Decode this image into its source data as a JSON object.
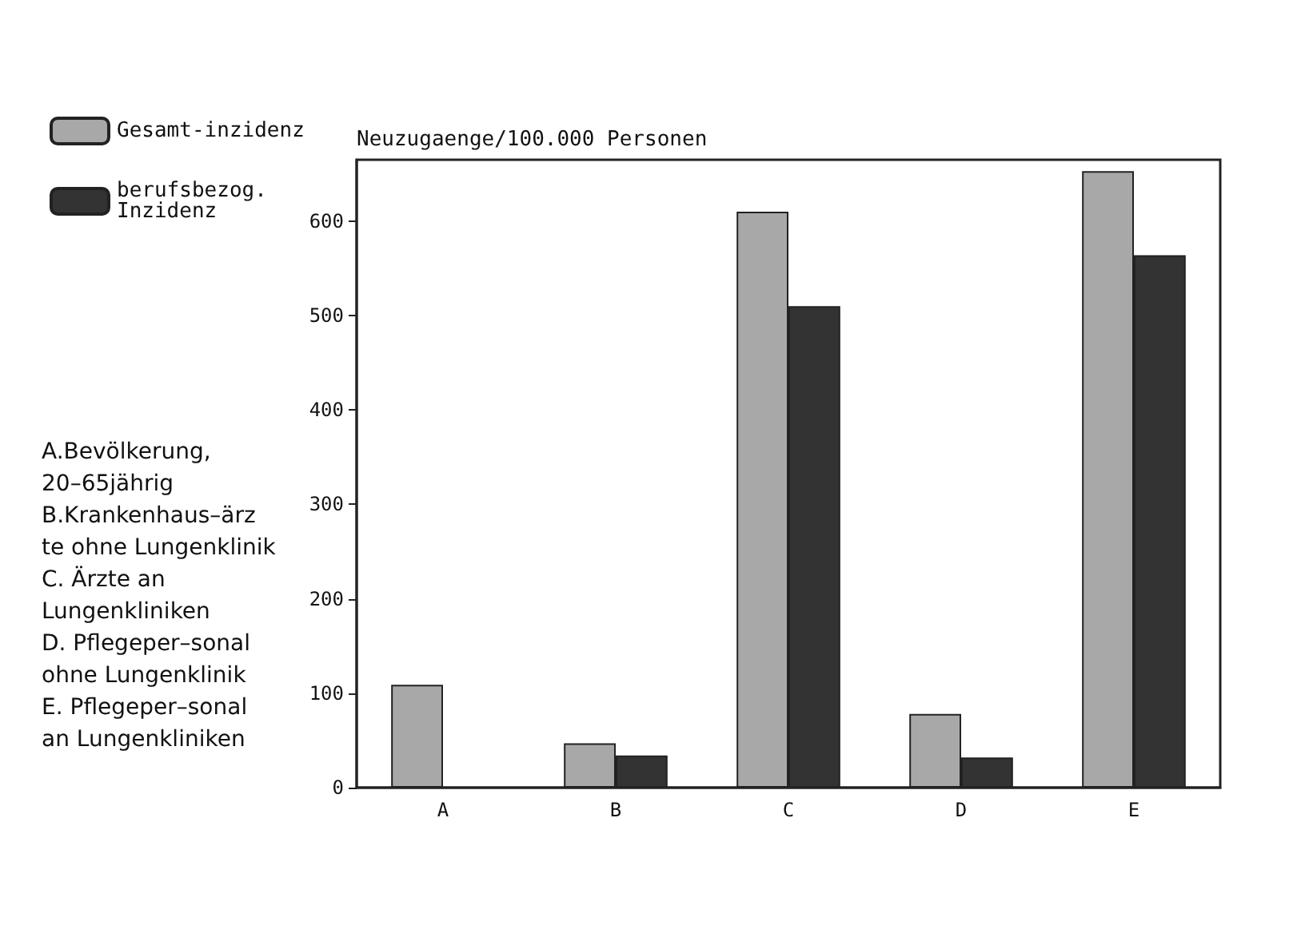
{
  "chart_data": {
    "type": "bar",
    "ylabel": "Neuzugaenge/100.000 Personen",
    "categories": [
      "A",
      "B",
      "C",
      "D",
      "E"
    ],
    "series": [
      {
        "name": "Gesamt-inzidenz",
        "color": "#a8a8a8",
        "values": [
          109,
          47,
          610,
          78,
          653
        ]
      },
      {
        "name": "berufsbezog. Inzidenz",
        "color": "#333333",
        "values": [
          null,
          34,
          510,
          32,
          564
        ]
      }
    ],
    "ylim": [
      0,
      665
    ],
    "yticks": [
      0,
      100,
      200,
      300,
      400,
      500,
      600
    ],
    "grid": false,
    "legend": "left",
    "annotations": [
      "A.Bevölkerung, 20–65jährig",
      "B.Krankenhaus–ärzte ohne Lungenklinik",
      "C. Ärzte an Lungenkliniken",
      "D. Pflegeper–sonal ohne Lungenklinik",
      "E. Pflegeper–sonal an Lungenkliniken"
    ]
  }
}
